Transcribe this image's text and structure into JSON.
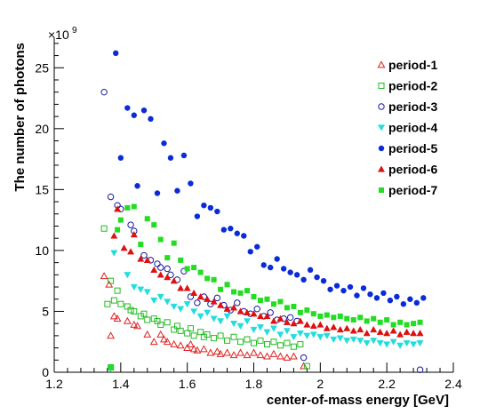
{
  "chart_data": {
    "type": "scatter",
    "title": "",
    "xlabel": "center-of-mass energy [GeV]",
    "ylabel": "The number of photons",
    "y_multiplier": "×10",
    "y_multiplier_exponent": "9",
    "xlim": [
      1.2,
      2.4
    ],
    "ylim": [
      0,
      27.5
    ],
    "x_ticks": [
      "1.2",
      "1.4",
      "1.6",
      "1.8",
      "2",
      "2.2",
      "2.4"
    ],
    "y_ticks": [
      "0",
      "5",
      "10",
      "15",
      "20",
      "25"
    ],
    "grid": false,
    "legend_position": "top-right",
    "series": [
      {
        "name": "period-1",
        "marker": "open-triangle",
        "color": "#dd2222",
        "points": [
          [
            1.35,
            7.9
          ],
          [
            1.365,
            7.2
          ],
          [
            1.37,
            3.0
          ],
          [
            1.38,
            4.6
          ],
          [
            1.39,
            4.4
          ],
          [
            1.42,
            4.2
          ],
          [
            1.44,
            3.9
          ],
          [
            1.45,
            3.8
          ],
          [
            1.48,
            3.1
          ],
          [
            1.5,
            2.5
          ],
          [
            1.52,
            3.1
          ],
          [
            1.53,
            2.7
          ],
          [
            1.54,
            2.5
          ],
          [
            1.56,
            2.3
          ],
          [
            1.58,
            2.2
          ],
          [
            1.6,
            2.0
          ],
          [
            1.61,
            2.3
          ],
          [
            1.62,
            1.9
          ],
          [
            1.63,
            1.8
          ],
          [
            1.65,
            1.9
          ],
          [
            1.67,
            1.6
          ],
          [
            1.69,
            1.7
          ],
          [
            1.7,
            1.5
          ],
          [
            1.72,
            1.6
          ],
          [
            1.74,
            1.4
          ],
          [
            1.76,
            1.6
          ],
          [
            1.78,
            1.4
          ],
          [
            1.8,
            1.6
          ],
          [
            1.82,
            1.4
          ],
          [
            1.84,
            1.3
          ],
          [
            1.86,
            1.5
          ],
          [
            1.88,
            1.3
          ],
          [
            1.9,
            1.2
          ],
          [
            1.92,
            1.3
          ],
          [
            1.95,
            0.5
          ]
        ]
      },
      {
        "name": "period-2",
        "marker": "open-square",
        "color": "#22bb22",
        "points": [
          [
            1.35,
            11.8
          ],
          [
            1.36,
            5.6
          ],
          [
            1.37,
            7.5
          ],
          [
            1.38,
            5.9
          ],
          [
            1.39,
            6.7
          ],
          [
            1.4,
            5.6
          ],
          [
            1.42,
            5.4
          ],
          [
            1.43,
            5.1
          ],
          [
            1.44,
            5.0
          ],
          [
            1.46,
            4.6
          ],
          [
            1.47,
            4.8
          ],
          [
            1.48,
            4.3
          ],
          [
            1.5,
            4.4
          ],
          [
            1.51,
            4.2
          ],
          [
            1.52,
            3.9
          ],
          [
            1.54,
            4.1
          ],
          [
            1.56,
            3.5
          ],
          [
            1.57,
            3.8
          ],
          [
            1.58,
            3.4
          ],
          [
            1.6,
            3.2
          ],
          [
            1.61,
            3.6
          ],
          [
            1.62,
            3.0
          ],
          [
            1.64,
            3.3
          ],
          [
            1.65,
            2.9
          ],
          [
            1.66,
            3.1
          ],
          [
            1.68,
            2.8
          ],
          [
            1.7,
            3.0
          ],
          [
            1.72,
            2.6
          ],
          [
            1.74,
            2.9
          ],
          [
            1.76,
            2.5
          ],
          [
            1.78,
            2.7
          ],
          [
            1.8,
            2.4
          ],
          [
            1.82,
            2.6
          ],
          [
            1.84,
            2.3
          ],
          [
            1.86,
            2.5
          ],
          [
            1.88,
            2.2
          ],
          [
            1.9,
            2.4
          ],
          [
            1.92,
            2.1
          ],
          [
            1.94,
            2.3
          ],
          [
            1.96,
            0.5
          ],
          [
            1.37,
            0.4
          ]
        ]
      },
      {
        "name": "period-3",
        "marker": "open-circle",
        "color": "#1a1aa0",
        "points": [
          [
            1.35,
            23.0
          ],
          [
            1.37,
            14.4
          ],
          [
            1.39,
            13.7
          ],
          [
            1.4,
            13.4
          ],
          [
            1.43,
            12.1
          ],
          [
            1.44,
            11.6
          ],
          [
            1.47,
            9.6
          ],
          [
            1.49,
            9.2
          ],
          [
            1.51,
            8.9
          ],
          [
            1.52,
            8.6
          ],
          [
            1.54,
            8.5
          ],
          [
            1.55,
            8.0
          ],
          [
            1.57,
            7.6
          ],
          [
            1.59,
            8.3
          ],
          [
            1.61,
            6.2
          ],
          [
            1.63,
            5.7
          ],
          [
            1.65,
            6.2
          ],
          [
            1.67,
            5.6
          ],
          [
            1.69,
            6.1
          ],
          [
            1.71,
            5.5
          ],
          [
            1.73,
            5.1
          ],
          [
            1.75,
            5.7
          ],
          [
            1.77,
            5.0
          ],
          [
            1.79,
            4.8
          ],
          [
            1.81,
            5.2
          ],
          [
            1.83,
            4.6
          ],
          [
            1.85,
            4.9
          ],
          [
            1.87,
            4.3
          ],
          [
            1.89,
            4.4
          ],
          [
            1.91,
            4.5
          ],
          [
            1.93,
            4.2
          ],
          [
            1.95,
            1.2
          ],
          [
            2.3,
            0.2
          ]
        ]
      },
      {
        "name": "period-4",
        "marker": "filled-down-triangle",
        "color": "#22dddd",
        "points": [
          [
            1.37,
            0.3
          ],
          [
            1.38,
            9.8
          ],
          [
            1.42,
            8.0
          ],
          [
            1.44,
            7.0
          ],
          [
            1.46,
            6.8
          ],
          [
            1.48,
            6.6
          ],
          [
            1.5,
            5.9
          ],
          [
            1.52,
            6.2
          ],
          [
            1.54,
            5.8
          ],
          [
            1.56,
            5.4
          ],
          [
            1.58,
            5.2
          ],
          [
            1.6,
            5.6
          ],
          [
            1.62,
            5.0
          ],
          [
            1.64,
            4.6
          ],
          [
            1.66,
            4.9
          ],
          [
            1.68,
            4.4
          ],
          [
            1.7,
            4.2
          ],
          [
            1.72,
            4.6
          ],
          [
            1.74,
            4.0
          ],
          [
            1.76,
            3.8
          ],
          [
            1.78,
            4.2
          ],
          [
            1.8,
            3.5
          ],
          [
            1.82,
            3.7
          ],
          [
            1.84,
            3.3
          ],
          [
            1.86,
            3.6
          ],
          [
            1.88,
            3.1
          ],
          [
            1.9,
            3.4
          ],
          [
            1.92,
            2.9
          ],
          [
            1.94,
            3.2
          ],
          [
            1.96,
            3.0
          ],
          [
            1.98,
            3.1
          ],
          [
            2.0,
            2.9
          ],
          [
            2.02,
            3.0
          ],
          [
            2.04,
            2.7
          ],
          [
            2.06,
            2.8
          ],
          [
            2.08,
            2.6
          ],
          [
            2.1,
            2.7
          ],
          [
            2.12,
            2.6
          ],
          [
            2.14,
            2.4
          ],
          [
            2.16,
            2.6
          ],
          [
            2.18,
            2.4
          ],
          [
            2.2,
            2.3
          ],
          [
            2.22,
            2.5
          ],
          [
            2.24,
            2.2
          ],
          [
            2.26,
            2.4
          ],
          [
            2.28,
            2.3
          ],
          [
            2.3,
            2.4
          ]
        ]
      },
      {
        "name": "period-5",
        "marker": "filled-circle",
        "color": "#0a2bd8",
        "points": [
          [
            1.385,
            26.2
          ],
          [
            1.4,
            17.6
          ],
          [
            1.42,
            21.7
          ],
          [
            1.44,
            21.1
          ],
          [
            1.45,
            15.3
          ],
          [
            1.47,
            21.5
          ],
          [
            1.49,
            20.8
          ],
          [
            1.51,
            14.7
          ],
          [
            1.53,
            18.8
          ],
          [
            1.55,
            17.6
          ],
          [
            1.57,
            14.9
          ],
          [
            1.59,
            17.8
          ],
          [
            1.61,
            15.5
          ],
          [
            1.63,
            12.8
          ],
          [
            1.65,
            13.7
          ],
          [
            1.67,
            13.5
          ],
          [
            1.69,
            13.2
          ],
          [
            1.71,
            11.7
          ],
          [
            1.73,
            11.8
          ],
          [
            1.75,
            11.4
          ],
          [
            1.77,
            11.2
          ],
          [
            1.79,
            9.9
          ],
          [
            1.81,
            10.3
          ],
          [
            1.83,
            8.8
          ],
          [
            1.85,
            8.6
          ],
          [
            1.87,
            9.3
          ],
          [
            1.89,
            8.5
          ],
          [
            1.91,
            8.2
          ],
          [
            1.93,
            8.0
          ],
          [
            1.95,
            7.6
          ],
          [
            1.97,
            8.4
          ],
          [
            1.99,
            7.8
          ],
          [
            2.01,
            7.5
          ],
          [
            2.03,
            6.8
          ],
          [
            2.05,
            7.1
          ],
          [
            2.07,
            6.7
          ],
          [
            2.09,
            7.0
          ],
          [
            2.11,
            6.3
          ],
          [
            2.13,
            6.9
          ],
          [
            2.15,
            6.4
          ],
          [
            2.17,
            6.1
          ],
          [
            2.19,
            6.5
          ],
          [
            2.21,
            5.9
          ],
          [
            2.23,
            6.2
          ],
          [
            2.25,
            5.6
          ],
          [
            2.27,
            6.0
          ],
          [
            2.29,
            5.7
          ],
          [
            2.31,
            6.1
          ]
        ]
      },
      {
        "name": "period-6",
        "marker": "filled-triangle",
        "color": "#dd1111",
        "points": [
          [
            1.38,
            11.2
          ],
          [
            1.39,
            13.4
          ],
          [
            1.41,
            10.2
          ],
          [
            1.43,
            9.9
          ],
          [
            1.44,
            11.3
          ],
          [
            1.46,
            9.3
          ],
          [
            1.48,
            9.2
          ],
          [
            1.5,
            8.4
          ],
          [
            1.52,
            8.0
          ],
          [
            1.54,
            7.8
          ],
          [
            1.56,
            7.5
          ],
          [
            1.58,
            6.9
          ],
          [
            1.6,
            6.9
          ],
          [
            1.62,
            6.5
          ],
          [
            1.64,
            6.2
          ],
          [
            1.66,
            6.0
          ],
          [
            1.68,
            5.8
          ],
          [
            1.7,
            5.5
          ],
          [
            1.72,
            5.2
          ],
          [
            1.74,
            5.3
          ],
          [
            1.76,
            5.0
          ],
          [
            1.78,
            4.9
          ],
          [
            1.8,
            4.8
          ],
          [
            1.82,
            4.6
          ],
          [
            1.84,
            4.6
          ],
          [
            1.86,
            4.2
          ],
          [
            1.88,
            4.4
          ],
          [
            1.9,
            4.1
          ],
          [
            1.92,
            4.0
          ],
          [
            1.94,
            4.2
          ],
          [
            1.96,
            3.9
          ],
          [
            1.98,
            3.8
          ],
          [
            2.0,
            3.9
          ],
          [
            2.02,
            3.6
          ],
          [
            2.04,
            3.7
          ],
          [
            2.06,
            3.5
          ],
          [
            2.08,
            3.6
          ],
          [
            2.1,
            3.4
          ],
          [
            2.12,
            3.5
          ],
          [
            2.14,
            3.2
          ],
          [
            2.16,
            3.5
          ],
          [
            2.18,
            3.3
          ],
          [
            2.2,
            3.2
          ],
          [
            2.22,
            3.4
          ],
          [
            2.24,
            3.1
          ],
          [
            2.26,
            3.3
          ],
          [
            2.28,
            3.2
          ],
          [
            2.3,
            3.2
          ]
        ]
      },
      {
        "name": "period-7",
        "marker": "filled-square",
        "color": "#22dd22",
        "points": [
          [
            1.37,
            0.4
          ],
          [
            1.39,
            11.7
          ],
          [
            1.4,
            12.5
          ],
          [
            1.42,
            13.5
          ],
          [
            1.44,
            13.6
          ],
          [
            1.46,
            10.5
          ],
          [
            1.48,
            12.6
          ],
          [
            1.5,
            12.1
          ],
          [
            1.52,
            10.9
          ],
          [
            1.54,
            9.4
          ],
          [
            1.56,
            10.6
          ],
          [
            1.58,
            9.2
          ],
          [
            1.6,
            8.5
          ],
          [
            1.62,
            8.6
          ],
          [
            1.64,
            8.2
          ],
          [
            1.66,
            7.7
          ],
          [
            1.68,
            7.6
          ],
          [
            1.7,
            6.8
          ],
          [
            1.72,
            7.2
          ],
          [
            1.74,
            6.6
          ],
          [
            1.76,
            6.5
          ],
          [
            1.78,
            6.7
          ],
          [
            1.8,
            6.2
          ],
          [
            1.82,
            5.9
          ],
          [
            1.84,
            6.0
          ],
          [
            1.86,
            5.6
          ],
          [
            1.88,
            5.8
          ],
          [
            1.9,
            5.3
          ],
          [
            1.92,
            5.4
          ],
          [
            1.94,
            4.9
          ],
          [
            1.96,
            5.1
          ],
          [
            1.98,
            4.8
          ],
          [
            2.0,
            4.6
          ],
          [
            2.02,
            4.7
          ],
          [
            2.04,
            4.5
          ],
          [
            2.06,
            4.6
          ],
          [
            2.08,
            4.4
          ],
          [
            2.1,
            4.3
          ],
          [
            2.12,
            4.5
          ],
          [
            2.14,
            4.2
          ],
          [
            2.16,
            4.4
          ],
          [
            2.18,
            4.1
          ],
          [
            2.2,
            4.3
          ],
          [
            2.22,
            3.9
          ],
          [
            2.24,
            4.1
          ],
          [
            2.26,
            3.9
          ],
          [
            2.28,
            4.0
          ],
          [
            2.3,
            4.1
          ]
        ]
      }
    ]
  }
}
